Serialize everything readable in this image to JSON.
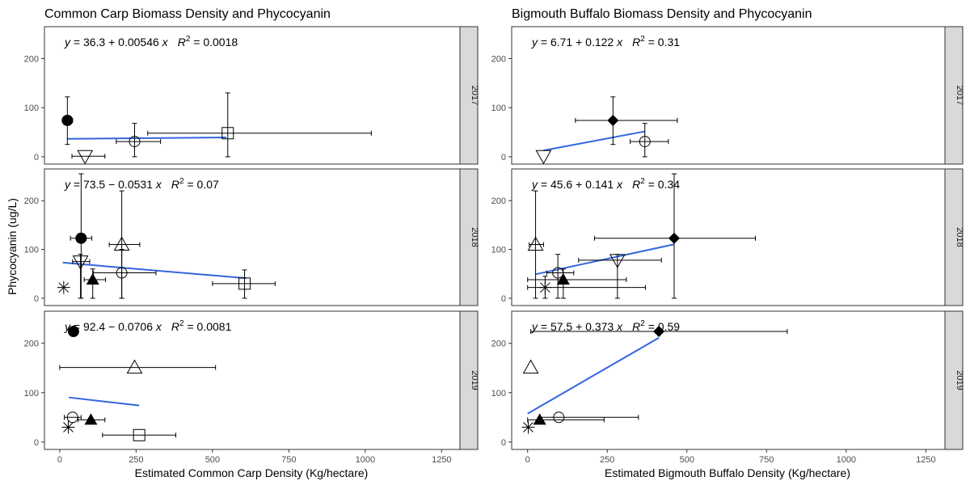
{
  "chart_data": [
    {
      "type": "scatter",
      "title": "Common Carp Biomass Density and Phycocyanin",
      "xlabel": "Estimated Common Carp Density (Kg/hectare)",
      "ylabel": "Phycocyanin (ug/L)",
      "xlim": [
        -50,
        1310
      ],
      "ylim": [
        -15,
        265
      ],
      "x_ticks": [
        0,
        250,
        500,
        750,
        1000,
        1250
      ],
      "y_ticks": [
        0,
        100,
        200
      ],
      "facets": [
        {
          "strip": "2017",
          "equation": {
            "prefix": "y = 36.3 + 0.00546 x",
            "r2_value": " = 0.0018"
          },
          "fit": {
            "x": [
              25,
              545
            ],
            "y": [
              36.4,
              39.3
            ],
            "color": "#3366dd"
          },
          "points": [
            {
              "shape": "filled-circle",
              "x": 25,
              "y": 74,
              "xerr": [
                15,
                42
              ],
              "yerr": [
                25,
                122
              ]
            },
            {
              "shape": "open-triangle-down",
              "x": 83,
              "y": 1,
              "xerr": [
                40,
                148
              ],
              "yerr": [
                1,
                1
              ]
            },
            {
              "shape": "open-circle",
              "x": 245,
              "y": 31,
              "xerr": [
                185,
                330
              ],
              "yerr": [
                0,
                68
              ]
            },
            {
              "shape": "open-square",
              "x": 550,
              "y": 48,
              "xerr": [
                288,
                1020
              ],
              "yerr": [
                0,
                130
              ]
            }
          ]
        },
        {
          "strip": "2018",
          "equation": {
            "prefix": "y = 73.5 − 0.0531 x",
            "r2_value": " = 0.07"
          },
          "fit": {
            "x": [
              10,
              610
            ],
            "y": [
              73.0,
              41.1
            ],
            "color": "#3366dd"
          },
          "points": [
            {
              "shape": "filled-circle",
              "x": 70,
              "y": 123,
              "xerr": [
                35,
                105
              ],
              "yerr": [
                0,
                255
              ]
            },
            {
              "shape": "open-triangle-down",
              "x": 68,
              "y": 75,
              "xerr": [
                42,
                98
              ],
              "yerr": [
                0,
                90
              ]
            },
            {
              "shape": "open-triangle-up",
              "x": 203,
              "y": 110,
              "xerr": [
                162,
                262
              ],
              "yerr": [
                0,
                220
              ]
            },
            {
              "shape": "open-circle",
              "x": 203,
              "y": 52,
              "xerr": [
                110,
                315
              ],
              "yerr": [
                0,
                100
              ]
            },
            {
              "shape": "filled-triangle-up",
              "x": 108,
              "y": 38,
              "xerr": [
                80,
                150
              ],
              "yerr": [
                0,
                60
              ]
            },
            {
              "shape": "asterisk",
              "x": 13,
              "y": 22,
              "xerr": [
                13,
                13
              ],
              "yerr": [
                22,
                22
              ]
            },
            {
              "shape": "open-square",
              "x": 605,
              "y": 30,
              "xerr": [
                500,
                705
              ],
              "yerr": [
                0,
                58
              ]
            }
          ]
        },
        {
          "strip": "2019",
          "equation": {
            "prefix": "y = 92.4 − 0.0706 x",
            "r2_value": " = 0.0081"
          },
          "fit": {
            "x": [
              30,
              260
            ],
            "y": [
              90.3,
              74.0
            ],
            "color": "#3366dd"
          },
          "points": [
            {
              "shape": "filled-circle",
              "x": 45,
              "y": 224,
              "xerr": [
                40,
                52
              ],
              "yerr": [
                224,
                224
              ]
            },
            {
              "shape": "open-triangle-up",
              "x": 245,
              "y": 151,
              "xerr": [
                0,
                510
              ],
              "yerr": [
                151,
                151
              ]
            },
            {
              "shape": "open-circle",
              "x": 42,
              "y": 50,
              "xerr": [
                15,
                70
              ],
              "yerr": [
                50,
                50
              ]
            },
            {
              "shape": "filled-triangle-up",
              "x": 102,
              "y": 45,
              "xerr": [
                60,
                148
              ],
              "yerr": [
                45,
                45
              ]
            },
            {
              "shape": "asterisk",
              "x": 28,
              "y": 30,
              "xerr": [
                28,
                28
              ],
              "yerr": [
                30,
                30
              ]
            },
            {
              "shape": "open-square",
              "x": 260,
              "y": 14,
              "xerr": [
                140,
                380
              ],
              "yerr": [
                14,
                14
              ]
            }
          ]
        }
      ]
    },
    {
      "type": "scatter",
      "title": "Bigmouth Buffalo Biomass Density and Phycocyanin",
      "xlabel": "Estimated Bigmouth Buffalo Density (Kg/hectare)",
      "ylabel": "",
      "xlim": [
        -50,
        1310
      ],
      "ylim": [
        -15,
        265
      ],
      "x_ticks": [
        0,
        250,
        500,
        750,
        1000,
        1250
      ],
      "y_ticks": [
        0,
        100,
        200
      ],
      "facets": [
        {
          "strip": "2017",
          "equation": {
            "prefix": "y = 6.71 + 0.122 x",
            "r2_value": " = 0.31"
          },
          "fit": {
            "x": [
              50,
              368
            ],
            "y": [
              12.8,
              51.6
            ],
            "color": "#3366dd"
          },
          "points": [
            {
              "shape": "filled-diamond",
              "x": 268,
              "y": 74,
              "xerr": [
                150,
                470
              ],
              "yerr": [
                25,
                122
              ]
            },
            {
              "shape": "open-circle",
              "x": 368,
              "y": 31,
              "xerr": [
                322,
                442
              ],
              "yerr": [
                0,
                68
              ]
            },
            {
              "shape": "open-triangle-down",
              "x": 50,
              "y": 1,
              "xerr": [
                50,
                50
              ],
              "yerr": [
                1,
                1
              ]
            }
          ]
        },
        {
          "strip": "2018",
          "equation": {
            "prefix": "y = 45.6 + 0.141 x",
            "r2_value": " = 0.34"
          },
          "fit": {
            "x": [
              25,
              460
            ],
            "y": [
              49.1,
              110.5
            ],
            "color": "#3366dd"
          },
          "points": [
            {
              "shape": "filled-diamond",
              "x": 460,
              "y": 123,
              "xerr": [
                210,
                715
              ],
              "yerr": [
                0,
                255
              ]
            },
            {
              "shape": "open-triangle-up",
              "x": 25,
              "y": 110,
              "xerr": [
                5,
                50
              ],
              "yerr": [
                0,
                220
              ]
            },
            {
              "shape": "open-triangle-down",
              "x": 282,
              "y": 78,
              "xerr": [
                160,
                420
              ],
              "yerr": [
                0,
                90
              ]
            },
            {
              "shape": "open-circle",
              "x": 95,
              "y": 52,
              "xerr": [
                60,
                145
              ],
              "yerr": [
                0,
                90
              ]
            },
            {
              "shape": "filled-triangle-up",
              "x": 112,
              "y": 38,
              "xerr": [
                0,
                310
              ],
              "yerr": [
                0,
                60
              ]
            },
            {
              "shape": "asterisk",
              "x": 55,
              "y": 22,
              "xerr": [
                0,
                370
              ],
              "yerr": [
                0,
                45
              ]
            }
          ]
        },
        {
          "strip": "2019",
          "equation": {
            "prefix": "y = 57.5 + 0.373 x",
            "r2_value": " = 0.59"
          },
          "fit": {
            "x": [
              0,
              412
            ],
            "y": [
              57.5,
              211.2
            ],
            "color": "#3366dd"
          },
          "points": [
            {
              "shape": "filled-diamond",
              "x": 412,
              "y": 224,
              "xerr": [
                10,
                815
              ],
              "yerr": [
                224,
                224
              ]
            },
            {
              "shape": "open-triangle-up",
              "x": 10,
              "y": 151,
              "xerr": [
                10,
                10
              ],
              "yerr": [
                151,
                151
              ]
            },
            {
              "shape": "open-circle",
              "x": 98,
              "y": 50,
              "xerr": [
                40,
                348
              ],
              "yerr": [
                50,
                50
              ]
            },
            {
              "shape": "filled-triangle-up",
              "x": 38,
              "y": 45,
              "xerr": [
                0,
                240
              ],
              "yerr": [
                45,
                45
              ]
            },
            {
              "shape": "asterisk",
              "x": 2,
              "y": 30,
              "xerr": [
                2,
                2
              ],
              "yerr": [
                30,
                30
              ]
            }
          ]
        }
      ]
    }
  ]
}
